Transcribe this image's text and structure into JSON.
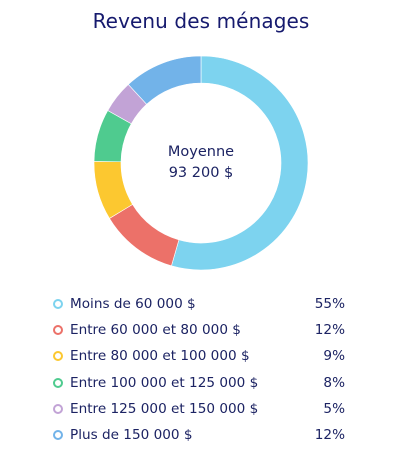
{
  "chart_data": {
    "type": "pie",
    "title": "Revenu des ménages",
    "center": {
      "line1": "Moyenne",
      "line2": "93 200 $"
    },
    "categories": [
      "Moins de 60 000 $",
      "Entre 60 000 et 80 000 $",
      "Entre 80 000 et 100 000 $",
      "Entre 100 000 et 125 000 $",
      "Entre 125 000 et 150 000 $",
      "Plus de 150 000 $"
    ],
    "values": [
      55,
      12,
      9,
      8,
      5,
      12
    ],
    "value_labels": [
      "55%",
      "12%",
      "9%",
      "8%",
      "5%",
      "12%"
    ],
    "colors": [
      "#7dd3ef",
      "#ec7169",
      "#fcc830",
      "#4fcb8f",
      "#c2a3d6",
      "#72b3e9"
    ],
    "donut": true,
    "legend_position": "bottom"
  }
}
